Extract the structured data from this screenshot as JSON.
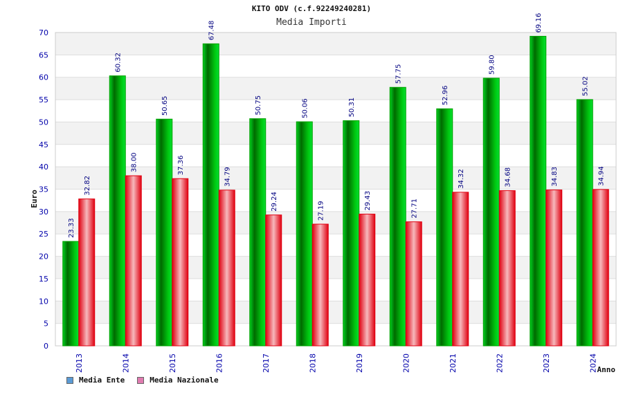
{
  "header": {
    "title": "KITO ODV (c.f.92249240281)",
    "subtitle": "Media Importi"
  },
  "legend": {
    "items": [
      {
        "label": "Media Ente",
        "color": "#5b9bd5"
      },
      {
        "label": "Media Nazionale",
        "color": "#e07bb0"
      }
    ]
  },
  "colors": {
    "ente": "#00a000",
    "nazionale": "#e00010",
    "axis_text": "#0000aa",
    "value_text": "#000080",
    "band": "#f2f2f2",
    "grid": "#dddddd"
  },
  "chart_data": {
    "type": "bar",
    "title": "KITO ODV (c.f.92249240281)",
    "subtitle": "Media Importi",
    "xlabel": "Anno",
    "ylabel": "Euro",
    "ylim": [
      0,
      70
    ],
    "ytick_step": 5,
    "grid": true,
    "legend_position": "bottom-left",
    "categories": [
      "2013",
      "2014",
      "2015",
      "2016",
      "2017",
      "2018",
      "2019",
      "2020",
      "2021",
      "2022",
      "2023",
      "2024"
    ],
    "series": [
      {
        "name": "Media Ente",
        "values": [
          23.33,
          60.32,
          50.65,
          67.48,
          50.75,
          50.06,
          50.31,
          57.75,
          52.96,
          59.8,
          69.16,
          55.02
        ],
        "labels": [
          "23.33",
          "60.32",
          "50.65",
          "67.48",
          "50.75",
          "50.06",
          "50.31",
          "57.75",
          "52.96",
          "59.80",
          "69.16",
          "55.02"
        ]
      },
      {
        "name": "Media Nazionale",
        "values": [
          32.82,
          38.0,
          37.36,
          34.79,
          29.24,
          27.19,
          29.43,
          27.71,
          34.32,
          34.68,
          34.83,
          34.94
        ],
        "labels": [
          "32.82",
          "38.00",
          "37.36",
          "34.79",
          "29.24",
          "27.19",
          "29.43",
          "27.71",
          "34.32",
          "34.68",
          "34.83",
          "34.94"
        ]
      }
    ]
  }
}
